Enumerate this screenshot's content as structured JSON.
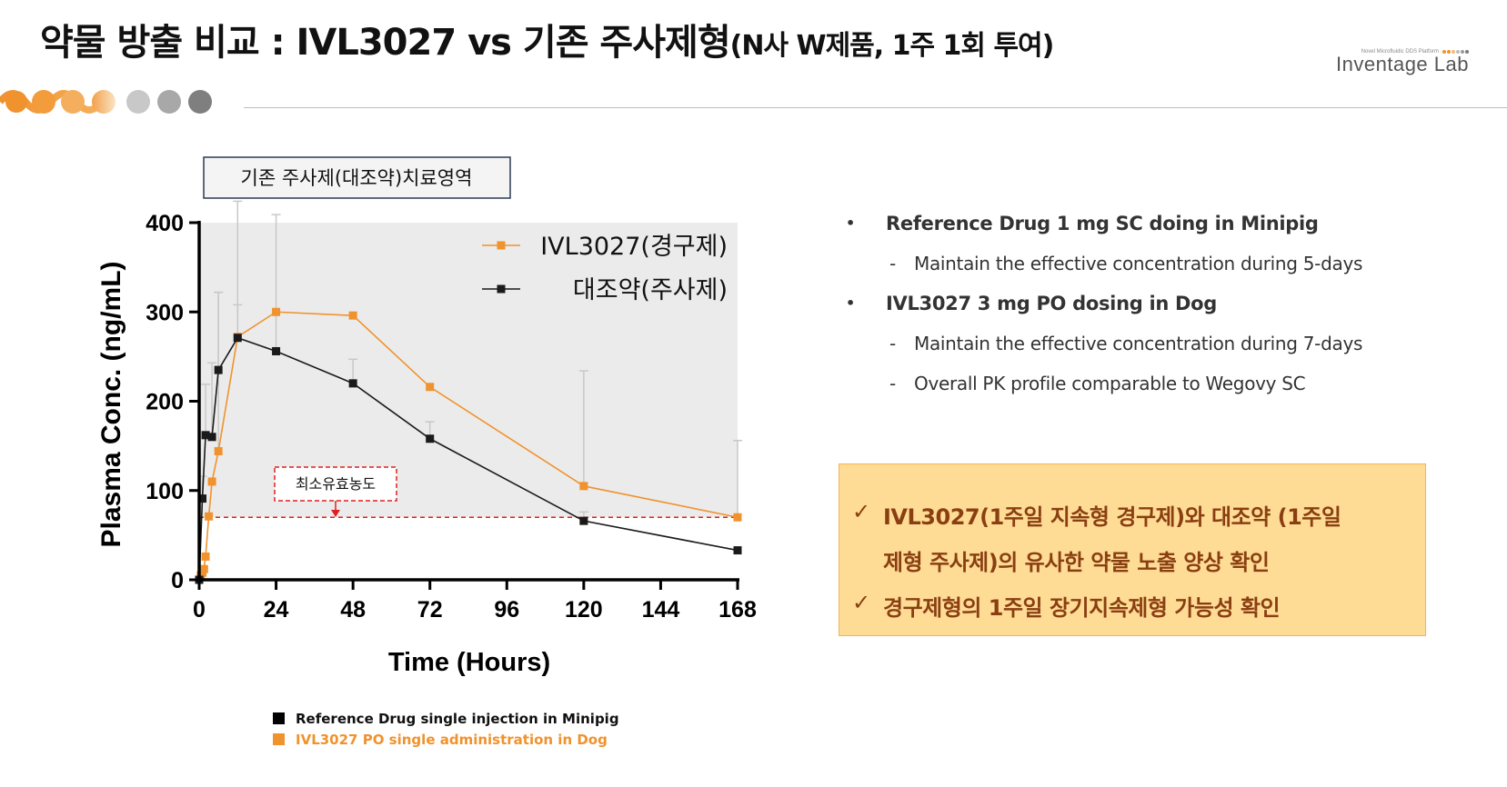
{
  "page": {
    "title_main": "약물 방출 비교 : IVL3027 vs 기존 주사제형",
    "title_sub": "(N사 W제품, 1주 1회 투여)"
  },
  "logo": {
    "tagline": "Novel Microfluidic DDS Platform",
    "name": "Inventage Lab"
  },
  "colors": {
    "orange": "#F0922E",
    "black": "#1a1a1a",
    "region": "#ebebeb",
    "mec_line": "#e02020",
    "callout_bg": "#ffdc96",
    "callout_text": "#8a3f12"
  },
  "chart_data": {
    "type": "line",
    "title": "",
    "xlabel": "Time (Hours)",
    "ylabel": "Plasma Conc. (ng/mL)",
    "xlim": [
      0,
      168
    ],
    "ylim": [
      0,
      400
    ],
    "xticks": [
      0,
      24,
      48,
      72,
      96,
      120,
      144,
      168
    ],
    "yticks": [
      0,
      100,
      200,
      300,
      400
    ],
    "grid": false,
    "legend_position": "top-right",
    "region_label": "기존 주사제(대조약)치료영역",
    "region_range": {
      "x": [
        0,
        168
      ],
      "y": [
        70,
        400
      ]
    },
    "mec": {
      "label": "최소유효농도",
      "value": 70
    },
    "series": [
      {
        "name": "IVL3027(경구제)",
        "color": "#F0922E",
        "x": [
          0,
          0.5,
          1,
          1.5,
          2,
          3,
          4,
          6,
          12,
          24,
          48,
          72,
          120,
          168
        ],
        "values": [
          0,
          5,
          8,
          12,
          26,
          71,
          110,
          144,
          272,
          300,
          296,
          216,
          105,
          70
        ],
        "error_up": [
          0,
          0,
          0,
          0,
          0,
          0,
          0,
          178,
          36,
          0,
          0,
          0,
          129,
          86
        ]
      },
      {
        "name": "대조약(주사제)",
        "color": "#1a1a1a",
        "x": [
          0,
          1,
          2,
          4,
          6,
          12,
          24,
          48,
          72,
          120,
          168
        ],
        "values": [
          0,
          91,
          162,
          160,
          235,
          271,
          256,
          220,
          158,
          66,
          33
        ],
        "error_up": [
          0,
          25,
          57,
          83,
          87,
          153,
          153,
          27,
          19,
          10,
          0
        ]
      }
    ]
  },
  "bullets": [
    {
      "text": "Reference Drug 1 mg SC doing in Minipig",
      "subs": [
        "Maintain the effective concentration during 5-days"
      ]
    },
    {
      "text": "IVL3027 3 mg PO dosing in Dog",
      "subs": [
        "Maintain the effective concentration during 7-days",
        "Overall PK profile comparable to Wegovy SC"
      ]
    }
  ],
  "callout": {
    "check": "✓",
    "line1": "IVL3027(1주일 지속형 경구제)와 대조약 (1주일",
    "line2": "제형 주사제)의 유사한 약물 노출 양상 확인",
    "line3": "경구제형의 1주일 장기지속제형 가능성 확인"
  },
  "legend_notes": [
    {
      "text": "Reference Drug single injection in Minipig",
      "color": "#000000"
    },
    {
      "text": "IVL3027 PO single administration in Dog",
      "color": "#F0922E"
    }
  ]
}
